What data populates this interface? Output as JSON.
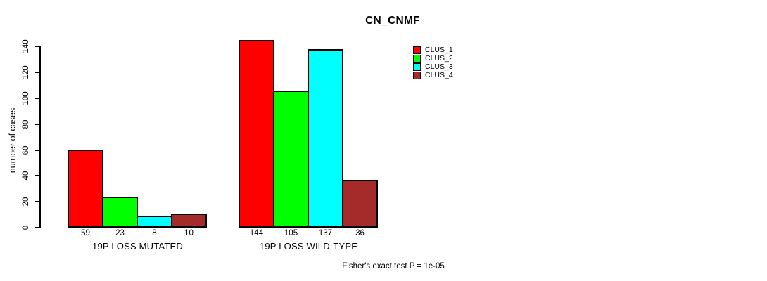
{
  "figure": {
    "title": "CN_CNMF",
    "footer": "Fisher's exact test P = 1e-05"
  },
  "chart_data": {
    "type": "bar",
    "title": "CN_CNMF",
    "xlabel": "",
    "ylabel": "number of cases",
    "ylim": [
      0,
      140
    ],
    "yticks": [
      0,
      20,
      40,
      60,
      80,
      100,
      120,
      140
    ],
    "grid": false,
    "legend_position": "top-right",
    "bar_value_labels_shown": true,
    "categories": [
      "19P LOSS MUTATED",
      "19P LOSS WILD-TYPE"
    ],
    "series": [
      {
        "name": "CLUS_1",
        "color": "#ff0000",
        "values": [
          59,
          144
        ]
      },
      {
        "name": "CLUS_2",
        "color": "#00ff00",
        "values": [
          23,
          105
        ]
      },
      {
        "name": "CLUS_3",
        "color": "#00ffff",
        "values": [
          8,
          137
        ]
      },
      {
        "name": "CLUS_4",
        "color": "#a52a2a",
        "values": [
          10,
          36
        ]
      }
    ],
    "annotation": "Fisher's exact test P = 1e-05"
  }
}
